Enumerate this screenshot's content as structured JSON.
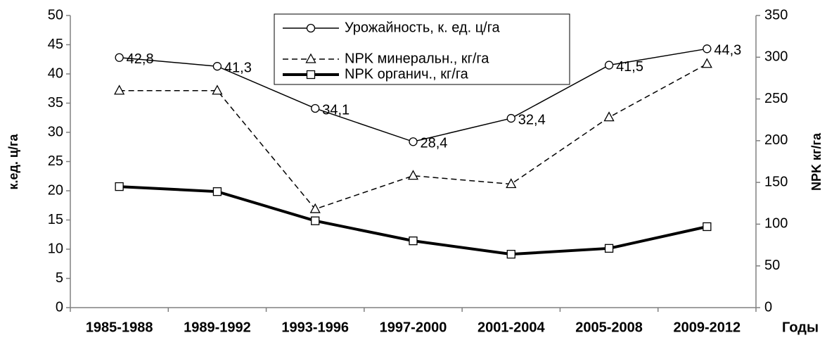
{
  "chart_data": {
    "type": "line",
    "categories": [
      "1985-1988",
      "1989-1992",
      "1993-1996",
      "1997-2000",
      "2001-2004",
      "2005-2008",
      "2009-2012"
    ],
    "xlabel": "Годы",
    "ylabel": "к.ед. ц/га",
    "y2label": "NPK кг/га",
    "ylim": [
      0,
      50
    ],
    "yticks": [
      0,
      5,
      10,
      15,
      20,
      25,
      30,
      35,
      40,
      45,
      50
    ],
    "y2lim": [
      0,
      350
    ],
    "y2ticks": [
      0,
      50,
      100,
      150,
      200,
      250,
      300,
      350
    ],
    "series": [
      {
        "name": "Урожайность, к. ед. ц/га",
        "color": "#000000",
        "marker": "circle",
        "dashed": false,
        "line_width": 1.5,
        "values": [
          42.8,
          41.3,
          34.1,
          28.4,
          32.4,
          41.5,
          44.3
        ],
        "value_labels": [
          "42,8",
          "41,3",
          "34,1",
          "28,4",
          "32,4",
          "41,5",
          "44,3"
        ]
      },
      {
        "name": "NPK минеральн., кг/га",
        "color": "#000000",
        "marker": "triangle",
        "dashed": true,
        "line_width": 1.5,
        "axis": "y2",
        "values": [
          260,
          260,
          118,
          158,
          148,
          228,
          292
        ]
      },
      {
        "name": "NPK органич., кг/га",
        "color": "#000000",
        "marker": "square",
        "dashed": false,
        "line_width": 4,
        "axis": "y2",
        "values": [
          145,
          139,
          104,
          80,
          64,
          71,
          97
        ]
      }
    ]
  }
}
